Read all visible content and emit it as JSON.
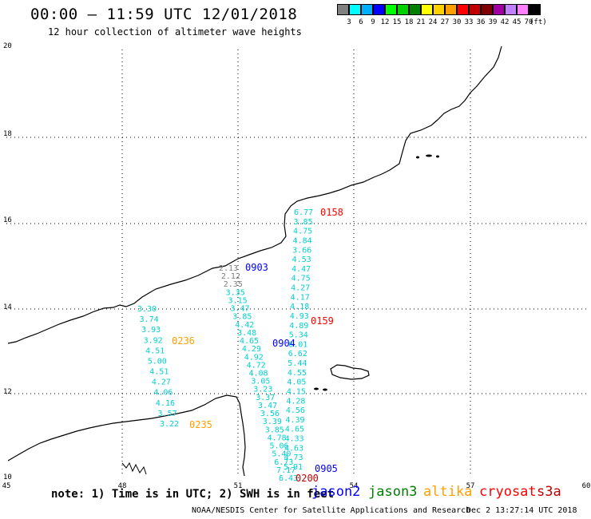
{
  "header": {
    "title": "00:00 – 11:59 UTC 12/01/2018",
    "subtitle": "12 hour collection of altimeter wave heights"
  },
  "color_scale": {
    "colors": [
      "#808080",
      "#00ffff",
      "#00b0ff",
      "#0000ff",
      "#00ff00",
      "#00d000",
      "#008000",
      "#ffff00",
      "#ffd000",
      "#ffa000",
      "#ff0000",
      "#c00000",
      "#800000",
      "#a000a0",
      "#c080ff",
      "#ff80ff",
      "#000000"
    ],
    "labels": [
      "3",
      "6",
      "9",
      "12",
      "15",
      "18",
      "21",
      "24",
      "27",
      "30",
      "33",
      "36",
      "39",
      "42",
      "45",
      "70"
    ],
    "unit": "(ft)"
  },
  "axes": {
    "lon_labels": [
      "45",
      "48",
      "51",
      "54",
      "57",
      "60"
    ],
    "lat_labels": [
      "20",
      "18",
      "16",
      "14",
      "12",
      "10"
    ]
  },
  "pass_labels": [
    {
      "text": "0158",
      "satellite": "cryosat"
    },
    {
      "text": "0903",
      "satellite": "jason2"
    },
    {
      "text": "0159",
      "satellite": "cryosat"
    },
    {
      "text": "0236",
      "satellite": "altika"
    },
    {
      "text": "0904",
      "satellite": "jason2"
    },
    {
      "text": "0235",
      "satellite": "altika"
    },
    {
      "text": "0905",
      "satellite": "jason2"
    },
    {
      "text": "0200",
      "satellite": "cryosat"
    }
  ],
  "tracks": [
    {
      "name": "cryosat-0158-0159",
      "values": [
        "6.77",
        "3.85",
        "4.75",
        "4.84",
        "3.66",
        "4.53",
        "4.47",
        "4.75",
        "4.27",
        "4.17",
        "4.18",
        "4.93",
        "4.89",
        "5.34",
        "6.01",
        "6.62",
        "5.44",
        "4.55",
        "4.05",
        "4.15",
        "4.28",
        "4.56",
        "4.39",
        "4.65",
        "4.33",
        "4.63",
        "4.73",
        "5.91"
      ]
    },
    {
      "name": "jason2-0903-0905",
      "values": [
        "2.13",
        "2.12",
        "2.35",
        "3.35",
        "3.15",
        "3.47",
        "3.85",
        "4.42",
        "3.48",
        "4.65",
        "4.29",
        "4.92",
        "4.72",
        "4.08",
        "3.05",
        "3.23",
        "3.37",
        "3.47",
        "3.56",
        "3.39",
        "3.85",
        "4.78",
        "5.06",
        "5.40",
        "6.73",
        "7.17",
        "6.43"
      ]
    },
    {
      "name": "altika-0236-0235",
      "values": [
        "3.30",
        "3.74",
        "3.93",
        "3.92",
        "4.51",
        "5.00",
        "4.51",
        "4.27",
        "4.06",
        "4.16",
        "3.57",
        "3.22"
      ]
    }
  ],
  "legend": {
    "note": "note: 1) Time is in UTC; 2) SWH is in feet",
    "satellites": [
      {
        "name": "jason2",
        "color": "#0000ff"
      },
      {
        "name": "jason3",
        "color": "#008000"
      },
      {
        "name": "altika",
        "color": "#ffa000"
      },
      {
        "name": "cryosat",
        "color": "#ff0000"
      },
      {
        "name": "s3a",
        "color": "#c00000"
      }
    ]
  },
  "footer": {
    "credit": "NOAA/NESDIS Center for Satellite Applications and Research",
    "timestamp": "Dec  2 13:27:14 UTC 2018"
  }
}
